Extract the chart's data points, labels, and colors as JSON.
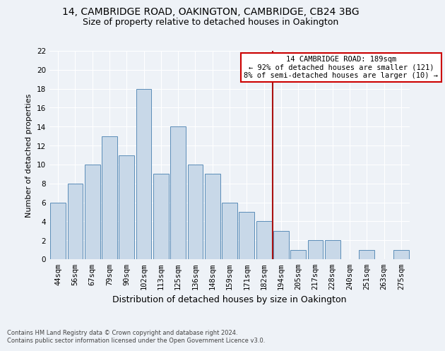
{
  "title1": "14, CAMBRIDGE ROAD, OAKINGTON, CAMBRIDGE, CB24 3BG",
  "title2": "Size of property relative to detached houses in Oakington",
  "xlabel": "Distribution of detached houses by size in Oakington",
  "ylabel": "Number of detached properties",
  "footer1": "Contains HM Land Registry data © Crown copyright and database right 2024.",
  "footer2": "Contains public sector information licensed under the Open Government Licence v3.0.",
  "categories": [
    "44sqm",
    "56sqm",
    "67sqm",
    "79sqm",
    "90sqm",
    "102sqm",
    "113sqm",
    "125sqm",
    "136sqm",
    "148sqm",
    "159sqm",
    "171sqm",
    "182sqm",
    "194sqm",
    "205sqm",
    "217sqm",
    "228sqm",
    "240sqm",
    "251sqm",
    "263sqm",
    "275sqm"
  ],
  "values": [
    6,
    8,
    10,
    13,
    11,
    18,
    9,
    14,
    10,
    9,
    6,
    5,
    4,
    3,
    1,
    2,
    2,
    0,
    1,
    0,
    1
  ],
  "bar_color": "#c8d8e8",
  "bar_edge_color": "#5b8db8",
  "vline_color": "#aa1111",
  "annotation_text": "14 CAMBRIDGE ROAD: 189sqm\n← 92% of detached houses are smaller (121)\n8% of semi-detached houses are larger (10) →",
  "annotation_box_color": "#ffffff",
  "annotation_border_color": "#cc0000",
  "ylim": [
    0,
    22
  ],
  "yticks": [
    0,
    2,
    4,
    6,
    8,
    10,
    12,
    14,
    16,
    18,
    20,
    22
  ],
  "bg_color": "#eef2f7",
  "grid_color": "#ffffff",
  "title1_fontsize": 10,
  "title2_fontsize": 9,
  "xlabel_fontsize": 9,
  "ylabel_fontsize": 8,
  "tick_fontsize": 7.5,
  "footer_fontsize": 6,
  "annot_fontsize": 7.5
}
